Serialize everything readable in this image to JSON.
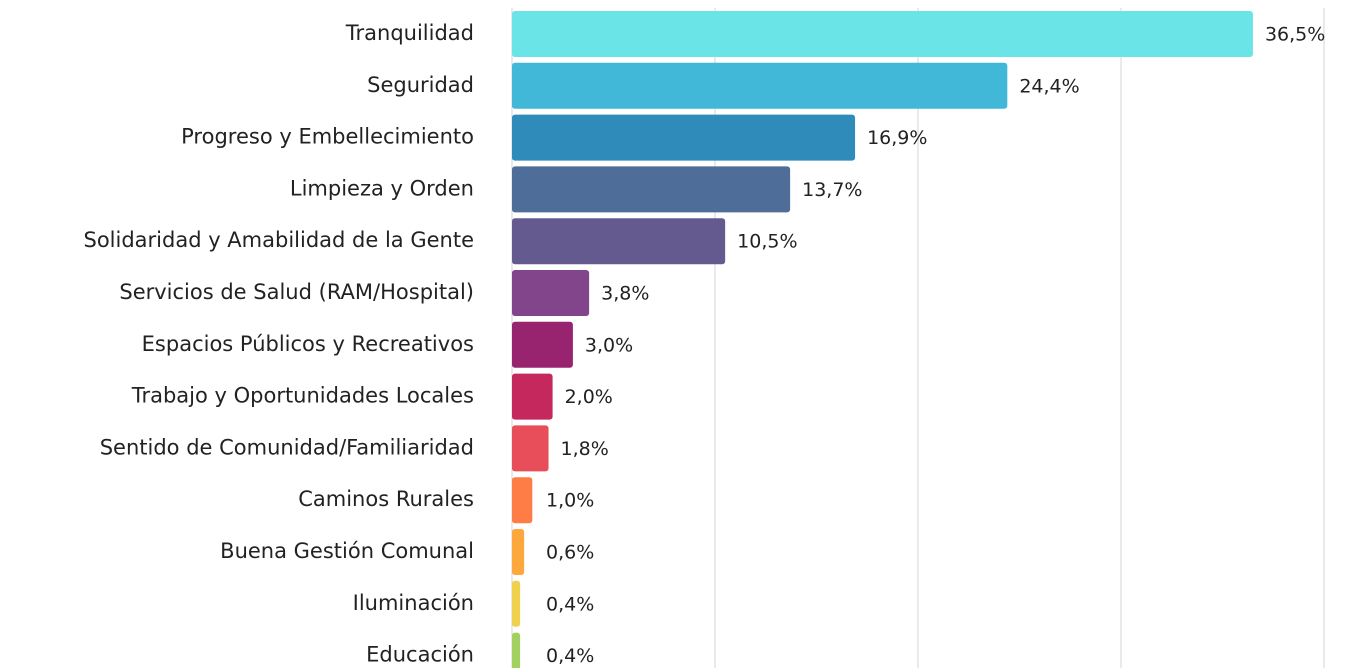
{
  "chart_data": {
    "type": "bar",
    "orientation": "horizontal",
    "categories": [
      "Tranquilidad",
      "Seguridad",
      "Progreso y Embellecimiento",
      "Limpieza y Orden",
      "Solidaridad y Amabilidad de la Gente",
      "Servicios de Salud (RAM/Hospital)",
      "Espacios Públicos y Recreativos",
      "Trabajo y Oportunidades Locales",
      "Sentido de Comunidad/Familiaridad",
      "Caminos Rurales",
      "Buena Gestión Comunal",
      "Iluminación",
      "Educación"
    ],
    "values": [
      36.5,
      24.4,
      16.9,
      13.7,
      10.5,
      3.8,
      3.0,
      2.0,
      1.8,
      1.0,
      0.6,
      0.4,
      0.4
    ],
    "value_labels": [
      "36,5%",
      "24,4%",
      "16,9%",
      "13,7%",
      "10,5%",
      "3,8%",
      "3,0%",
      "2,0%",
      "1,8%",
      "1,0%",
      "0,6%",
      "0,4%",
      "0,4%"
    ],
    "colors": [
      "#6be4e8",
      "#42b8d8",
      "#2f8bba",
      "#4f6d99",
      "#655a90",
      "#82448a",
      "#98236e",
      "#c4285c",
      "#e84e5a",
      "#fe7c45",
      "#fca83d",
      "#efd14e",
      "#a2d15f"
    ],
    "xlim": [
      0,
      40
    ],
    "xticks": [
      0,
      10,
      20,
      30,
      40
    ],
    "grid": true
  }
}
